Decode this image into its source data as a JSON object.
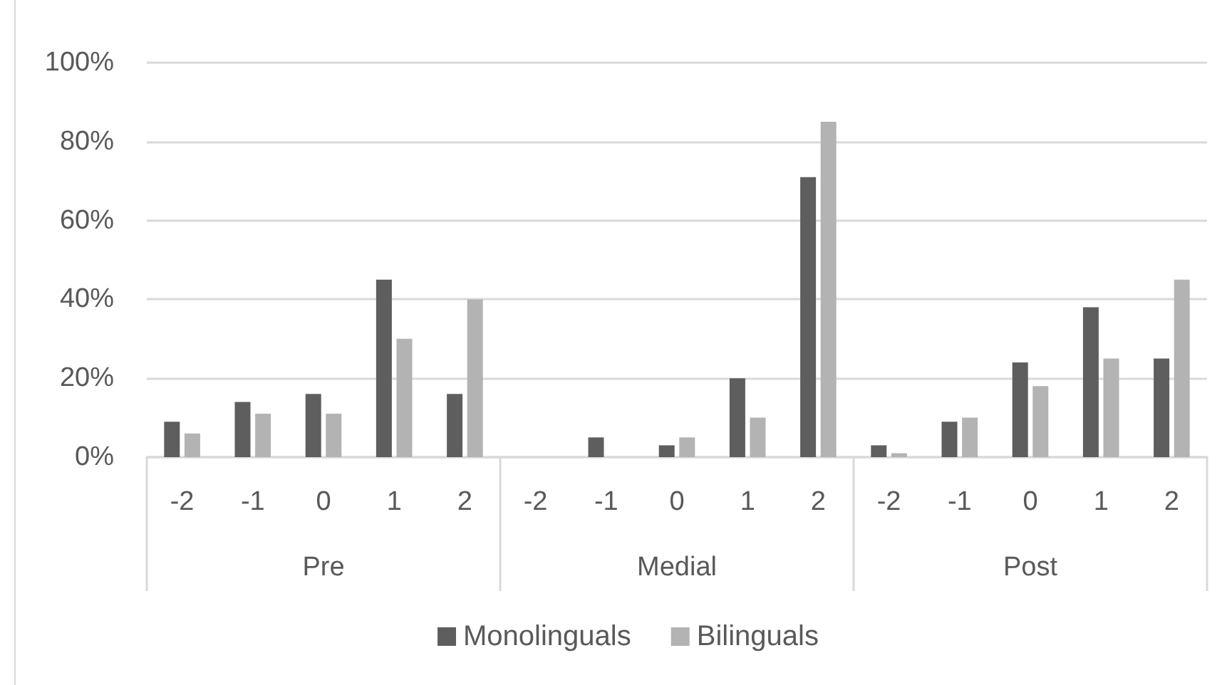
{
  "chart_data": {
    "type": "bar",
    "categories": [
      "-2",
      "-1",
      "0",
      "1",
      "2",
      "-2",
      "-1",
      "0",
      "1",
      "2",
      "-2",
      "-1",
      "0",
      "1",
      "2"
    ],
    "annotations": [
      "Pre",
      "Medial",
      "Post"
    ],
    "series": [
      {
        "name": "Monolinguals",
        "color": "#5e5e5e",
        "values": [
          9,
          14,
          16,
          45,
          16,
          0,
          5,
          3,
          20,
          71,
          3,
          9,
          24,
          38,
          25
        ]
      },
      {
        "name": "Bilinguals",
        "color": "#b3b3b3",
        "values": [
          6,
          11,
          11,
          30,
          40,
          0,
          0,
          5,
          10,
          85,
          1,
          10,
          18,
          25,
          45
        ]
      }
    ],
    "ylim": [
      0,
      100
    ],
    "yticks": [
      {
        "value": 0,
        "label": "0%"
      },
      {
        "value": 20,
        "label": "20%"
      },
      {
        "value": 40,
        "label": "40%"
      },
      {
        "value": 60,
        "label": "60%"
      },
      {
        "value": 80,
        "label": "80%"
      },
      {
        "value": 100,
        "label": "100%"
      }
    ],
    "grid": "y",
    "legend": "bottom"
  }
}
